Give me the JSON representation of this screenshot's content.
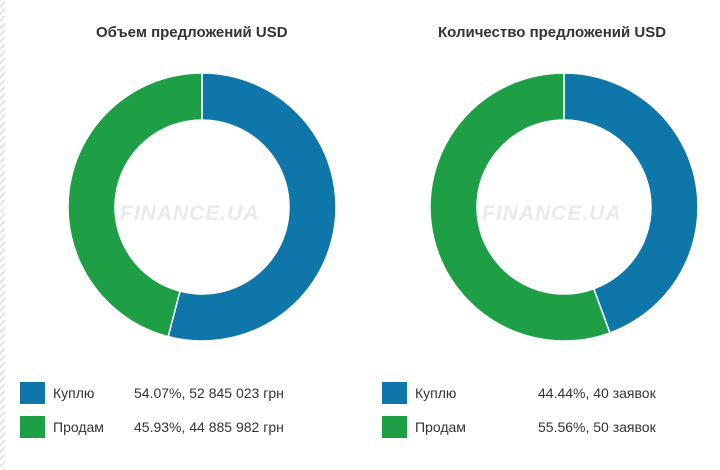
{
  "colors": {
    "buy": "#0e76a8",
    "sell": "#1f9f45",
    "hole": "#ffffff"
  },
  "watermark": "FINANCE.UA",
  "chart_data": [
    {
      "type": "pie",
      "title": "Объем предложений USD",
      "slices": [
        {
          "name": "Куплю",
          "value": 54.07,
          "label": "54.07%, 52 845 023 грн"
        },
        {
          "name": "Продам",
          "value": 45.93,
          "label": "45.93%, 44 885 982 грн"
        }
      ]
    },
    {
      "type": "pie",
      "title": "Количество предложений USD",
      "slices": [
        {
          "name": "Куплю",
          "value": 44.44,
          "label": "44.44%, 40 заявок"
        },
        {
          "name": "Продам",
          "value": 55.56,
          "label": "55.56%, 50 заявок"
        }
      ]
    }
  ]
}
